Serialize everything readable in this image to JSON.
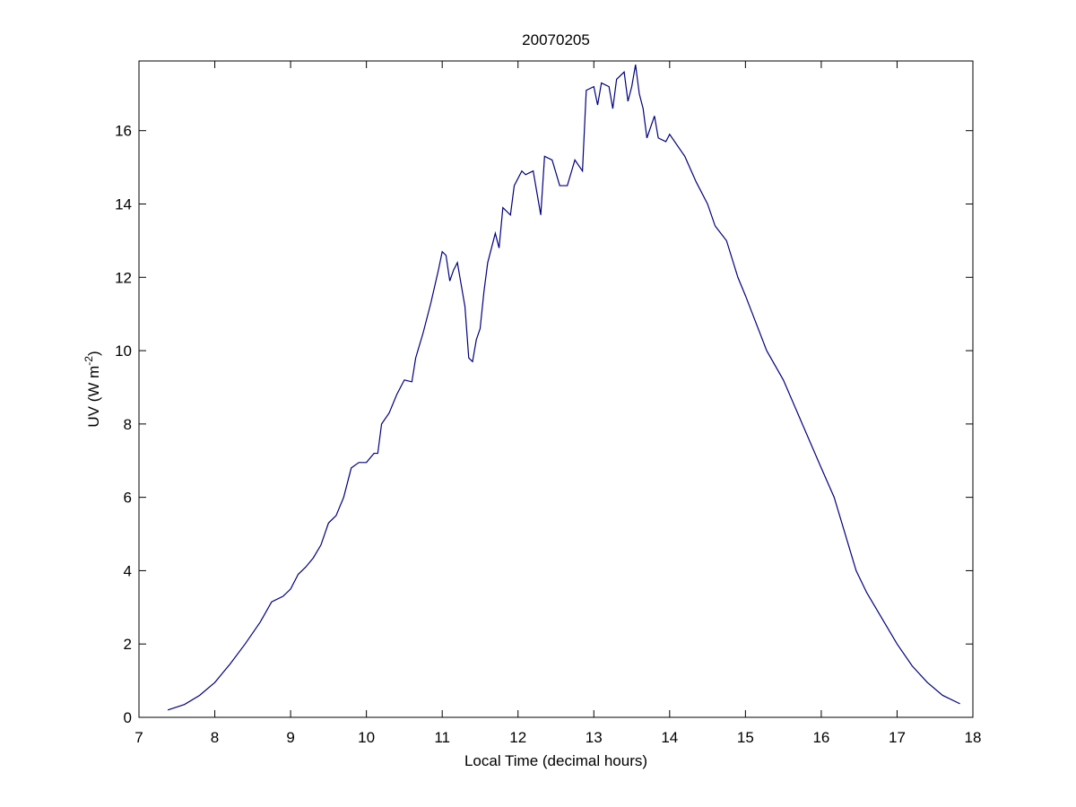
{
  "chart_data": {
    "type": "line",
    "title": "20070205",
    "xlabel": "Local Time (decimal hours)",
    "ylabel": [
      "UV (W m",
      "-2",
      ")"
    ],
    "x": [
      7.38,
      7.6,
      7.8,
      8.0,
      8.1,
      8.2,
      8.4,
      8.6,
      8.75,
      8.9,
      9.0,
      9.1,
      9.2,
      9.3,
      9.4,
      9.5,
      9.6,
      9.7,
      9.8,
      9.9,
      10.0,
      10.1,
      10.15,
      10.2,
      10.3,
      10.4,
      10.5,
      10.6,
      10.65,
      10.75,
      10.85,
      10.95,
      11.0,
      11.05,
      11.1,
      11.15,
      11.2,
      11.25,
      11.3,
      11.35,
      11.4,
      11.45,
      11.5,
      11.55,
      11.6,
      11.7,
      11.75,
      11.8,
      11.9,
      11.95,
      12.05,
      12.1,
      12.2,
      12.25,
      12.3,
      12.35,
      12.45,
      12.55,
      12.65,
      12.75,
      12.85,
      12.9,
      13.0,
      13.05,
      13.1,
      13.2,
      13.25,
      13.3,
      13.4,
      13.45,
      13.5,
      13.55,
      13.6,
      13.65,
      13.7,
      13.8,
      13.85,
      13.95,
      14.0,
      14.2,
      14.35,
      14.5,
      14.6,
      14.75,
      14.9,
      15.0,
      15.28,
      15.5,
      15.75,
      16.0,
      16.17,
      16.46,
      16.6,
      16.8,
      17.0,
      17.2,
      17.4,
      17.6,
      17.83
    ],
    "series": [
      {
        "name": "UV",
        "color": "#000080",
        "values": [
          0.2,
          0.35,
          0.6,
          0.95,
          1.2,
          1.45,
          2.0,
          2.6,
          3.15,
          3.3,
          3.5,
          3.9,
          4.1,
          4.35,
          4.7,
          5.3,
          5.5,
          6.0,
          6.8,
          6.95,
          6.95,
          7.2,
          7.2,
          8.0,
          8.3,
          8.8,
          9.2,
          9.15,
          9.8,
          10.5,
          11.3,
          12.2,
          12.7,
          12.6,
          11.9,
          12.2,
          12.4,
          11.8,
          11.2,
          9.8,
          9.7,
          10.3,
          10.6,
          11.6,
          12.4,
          13.2,
          12.8,
          13.9,
          13.7,
          14.5,
          14.9,
          14.8,
          14.9,
          14.3,
          13.7,
          15.3,
          15.2,
          14.5,
          14.5,
          15.2,
          14.9,
          17.1,
          17.2,
          16.7,
          17.3,
          17.2,
          16.6,
          17.4,
          17.6,
          16.8,
          17.2,
          17.8,
          17.0,
          16.6,
          15.8,
          16.4,
          15.8,
          15.7,
          15.9,
          15.3,
          14.6,
          14.0,
          13.4,
          13.0,
          12.0,
          11.5,
          10.0,
          9.2,
          8.0,
          6.8,
          6.0,
          4.0,
          3.4,
          2.7,
          2.0,
          1.4,
          0.95,
          0.6,
          0.37
        ]
      }
    ],
    "xlim": [
      7,
      18
    ],
    "xticks": [
      7,
      8,
      9,
      10,
      11,
      12,
      13,
      14,
      15,
      16,
      17,
      18
    ],
    "ylim": [
      0,
      17.9
    ],
    "yticks": [
      0,
      2,
      4,
      6,
      8,
      10,
      12,
      14,
      16
    ],
    "grid": false
  }
}
